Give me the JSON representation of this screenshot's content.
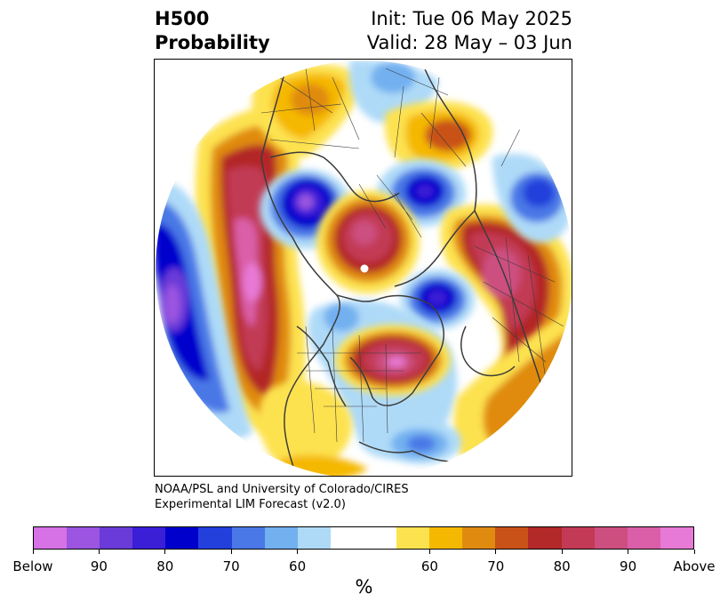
{
  "title": {
    "left_line1": "H500",
    "left_line2": "Probability",
    "right_line1": "Init: Tue 06 May 2025",
    "right_line2": "Valid: 28 May – 03 Jun"
  },
  "credit": {
    "line1": "NOAA/PSL and University of Colorado/CIRES",
    "line2": "Experimental LIM Forecast (v2.0)"
  },
  "colorbar": {
    "unit": "%",
    "colors": [
      "#d671e6",
      "#9b55e0",
      "#6a3bd8",
      "#3a1fd6",
      "#0000cd",
      "#2340dc",
      "#4a78e6",
      "#72b0f0",
      "#aedaf8",
      "#ffffff",
      "#fde24f",
      "#f5b800",
      "#e08b10",
      "#c95218",
      "#b32828",
      "#c23a55",
      "#cc4f80",
      "#da5fa8",
      "#e77ad6"
    ],
    "labels": [
      "Below",
      "90",
      "80",
      "70",
      "60",
      "60",
      "70",
      "80",
      "90",
      "Above"
    ]
  }
}
